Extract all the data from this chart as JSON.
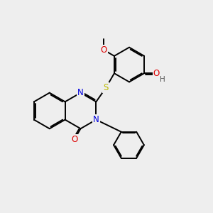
{
  "background_color": "#eeeeee",
  "fig_size": [
    3.0,
    3.0
  ],
  "dpi": 100,
  "bond_color": "#000000",
  "bond_width": 1.4,
  "atom_colors": {
    "N": "#0000dd",
    "O": "#dd0000",
    "S": "#bbbb00",
    "H": "#555555"
  },
  "font_size": 8.5
}
